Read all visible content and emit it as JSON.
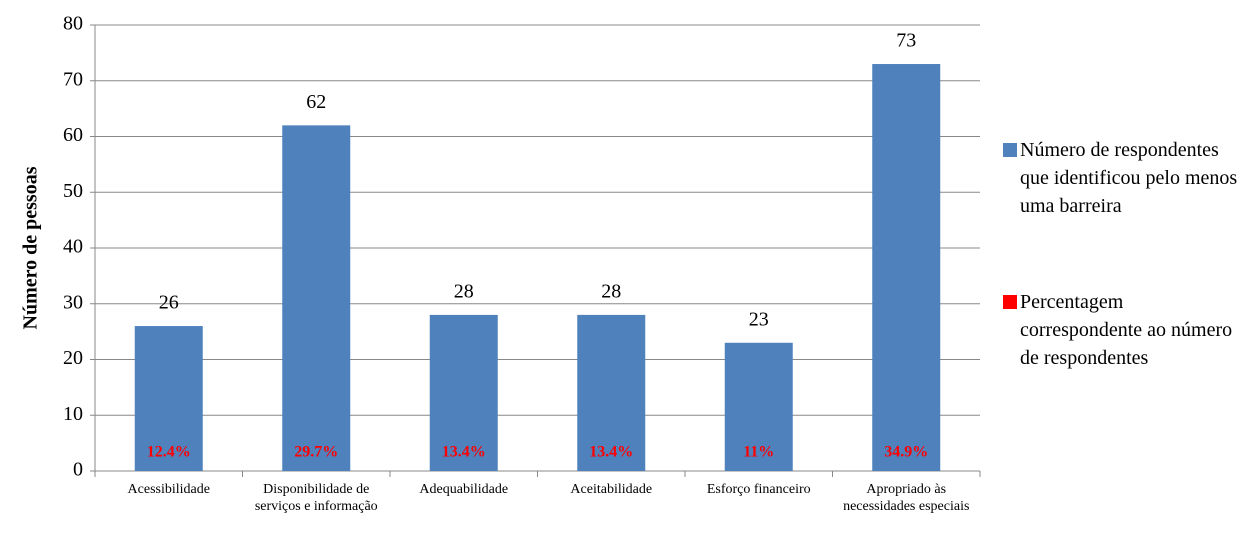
{
  "chart_data": {
    "type": "bar",
    "y_label": "Número de pessoas",
    "categories": [
      "Acessibilidade",
      "Disponibilidade de serviços e informação",
      "Adequabilidade",
      "Aceitabilidade",
      "Esforço financeiro",
      "Apropriado às necessidades especiais"
    ],
    "series": [
      {
        "name": "Número de respondentes que identificou pelo menos uma barreira",
        "color": "#4f81bd",
        "values": [
          26,
          62,
          28,
          28,
          23,
          73
        ]
      },
      {
        "name": "Percentagem correspondente ao número de respondentes",
        "color": "#ff0000",
        "values": [
          12.4,
          29.7,
          13.4,
          13.4,
          11,
          34.9
        ],
        "value_labels": [
          "12.4%",
          "29.7%",
          "13.4%",
          "13.4%",
          "11%",
          "34.9%"
        ]
      }
    ],
    "ylim": [
      0,
      80
    ],
    "yticks": [
      0,
      10,
      20,
      30,
      40,
      50,
      60,
      70,
      80
    ],
    "grid": true,
    "legend": "right"
  }
}
